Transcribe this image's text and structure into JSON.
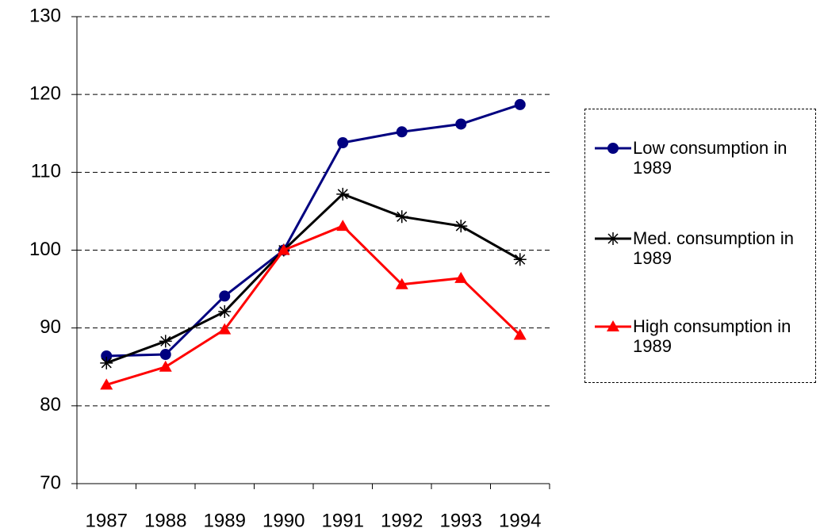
{
  "chart_data": {
    "type": "line",
    "categories": [
      "1987",
      "1988",
      "1989",
      "1990",
      "1991",
      "1992",
      "1993",
      "1994"
    ],
    "series": [
      {
        "name": "Low consumption in 1989",
        "color": "#000080",
        "marker": "circle",
        "values": [
          86.4,
          86.6,
          94.1,
          100,
          113.8,
          115.2,
          116.2,
          118.7
        ]
      },
      {
        "name": "Med. consumption in 1989",
        "color": "#000000",
        "marker": "asterisk",
        "values": [
          85.5,
          88.3,
          92.1,
          100,
          107.2,
          104.3,
          103.1,
          98.8
        ]
      },
      {
        "name": "High consumption in 1989",
        "color": "#ff0000",
        "marker": "triangle",
        "values": [
          82.7,
          85.0,
          89.8,
          100,
          103.1,
          95.6,
          96.4,
          89.1
        ]
      }
    ],
    "ylim": [
      70,
      130
    ],
    "yticks": [
      70,
      80,
      90,
      100,
      110,
      120,
      130
    ],
    "grid": true,
    "legend": "right"
  }
}
